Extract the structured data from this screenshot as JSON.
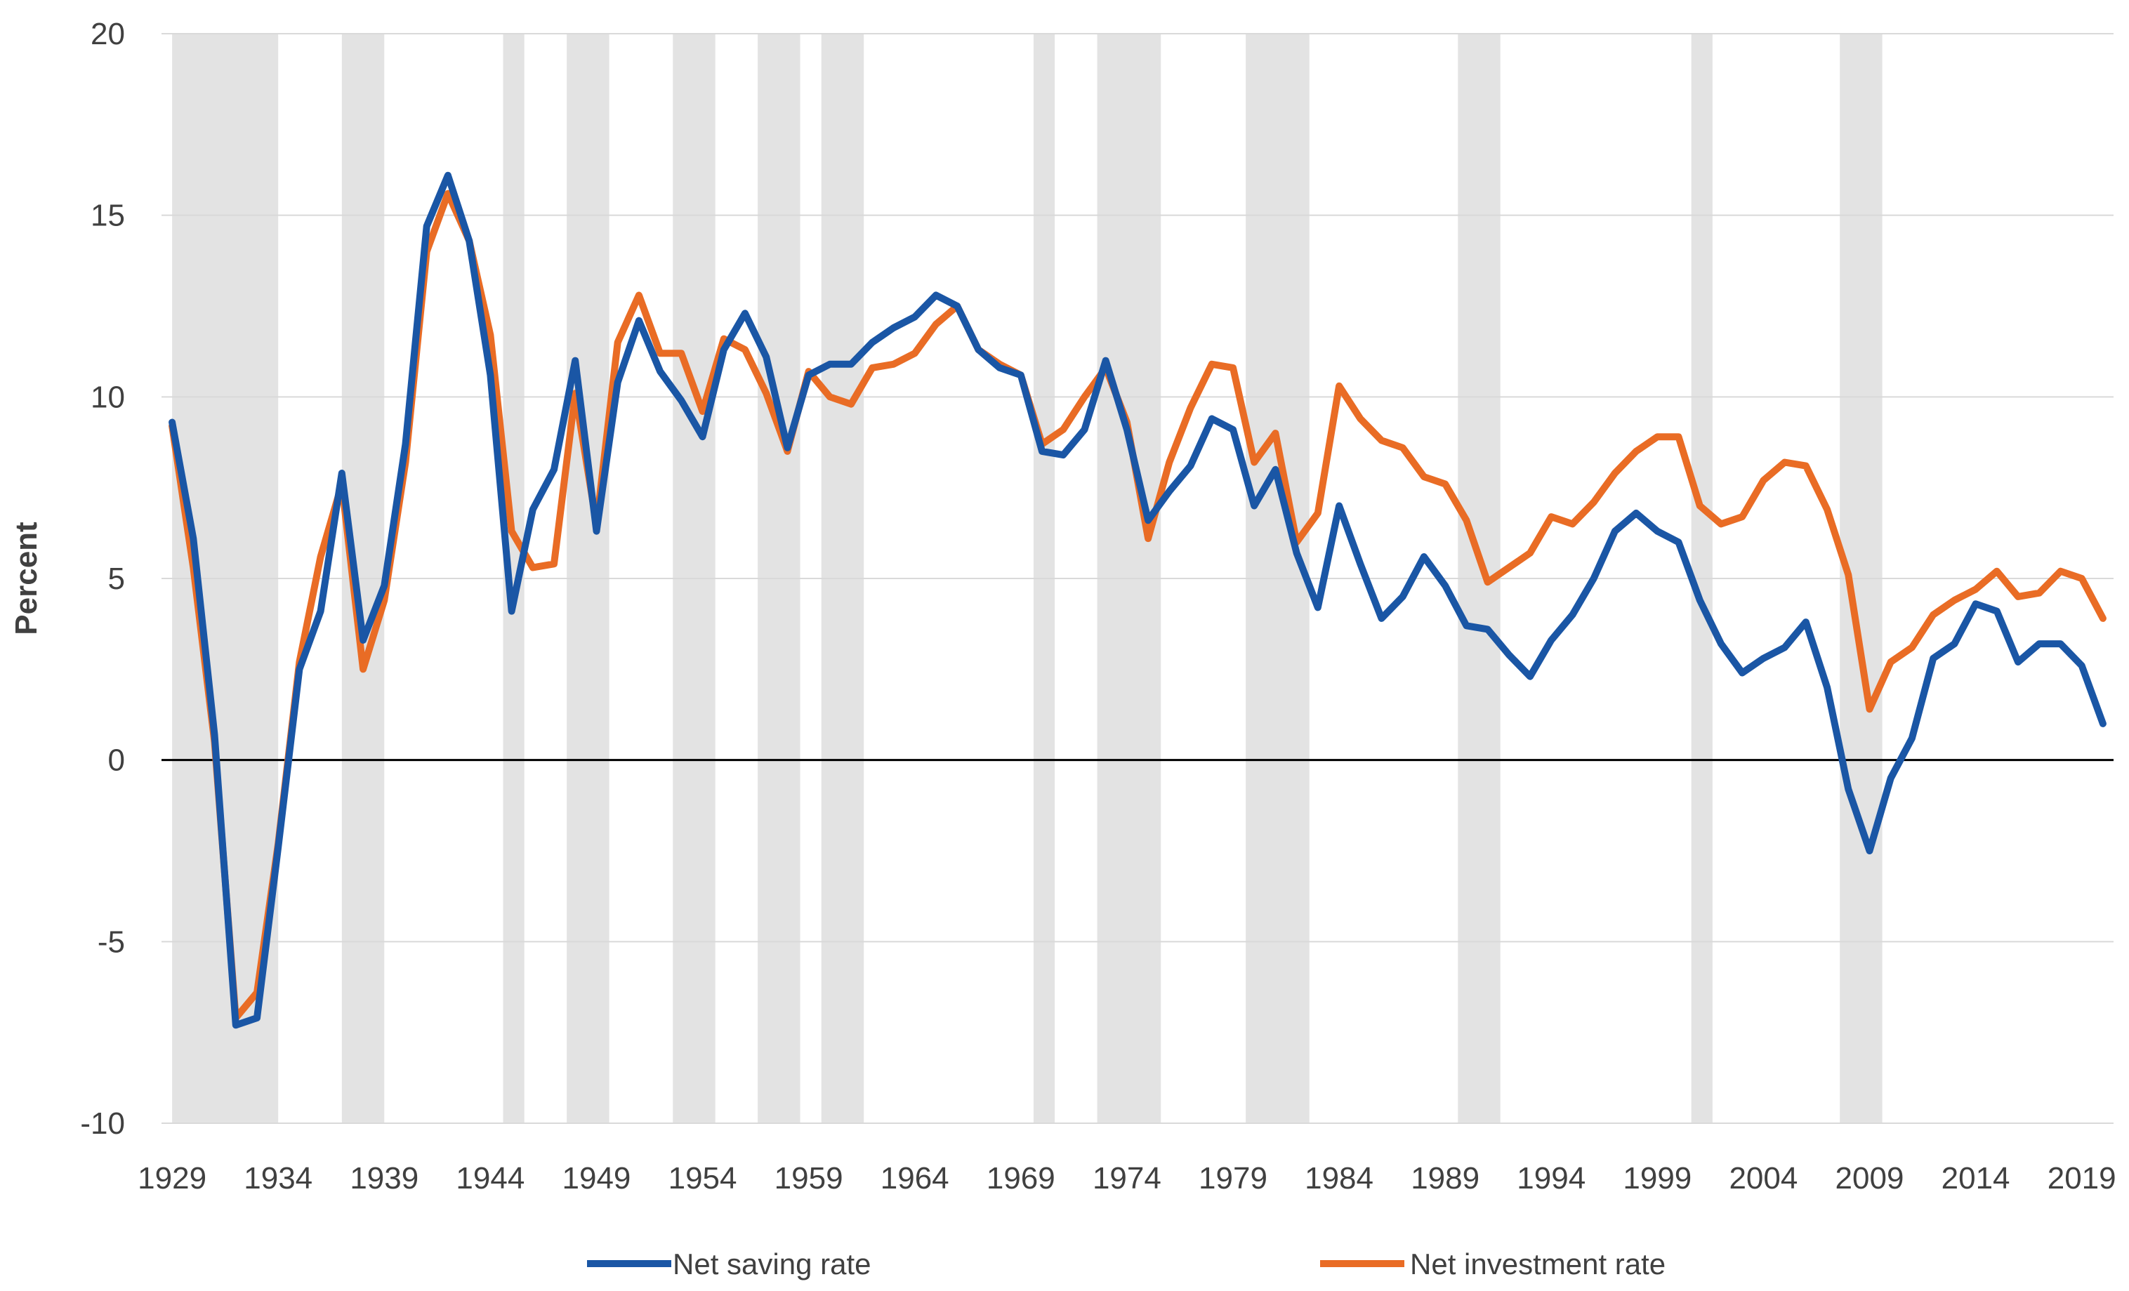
{
  "chart_data": {
    "type": "line",
    "title": "",
    "xlabel": "",
    "ylabel": "Percent",
    "ylim": [
      -10,
      20
    ],
    "y_ticks": [
      "20",
      "15",
      "10",
      "5",
      "0",
      "-5",
      "-10"
    ],
    "y_tick_values": [
      20,
      15,
      10,
      5,
      0,
      -5,
      -10
    ],
    "x_range": [
      1929,
      2020
    ],
    "x_ticks": [
      "1929",
      "1934",
      "1939",
      "1944",
      "1949",
      "1954",
      "1959",
      "1964",
      "1969",
      "1974",
      "1979",
      "1984",
      "1989",
      "1994",
      "1999",
      "2004",
      "2009",
      "2014",
      "2019"
    ],
    "x_tick_values": [
      1929,
      1934,
      1939,
      1944,
      1949,
      1954,
      1959,
      1964,
      1969,
      1974,
      1979,
      1984,
      1989,
      1994,
      1999,
      2004,
      2009,
      2014,
      2019
    ],
    "grid": true,
    "legend_position": "bottom",
    "shaded_periods": [
      [
        1929.0,
        1934.0
      ],
      [
        1937.0,
        1939.0
      ],
      [
        1944.6,
        1945.6
      ],
      [
        1947.6,
        1949.6
      ],
      [
        1952.6,
        1954.6
      ],
      [
        1956.6,
        1958.6
      ],
      [
        1959.6,
        1961.6
      ],
      [
        1969.6,
        1970.6
      ],
      [
        1972.6,
        1975.6
      ],
      [
        1979.6,
        1982.6
      ],
      [
        1989.6,
        1991.6
      ],
      [
        2000.6,
        2001.6
      ],
      [
        2007.6,
        2009.6
      ]
    ],
    "colors": {
      "net_saving": "#1a56a5",
      "net_investment": "#e96c25",
      "shading": "#e3e3e3",
      "zero_line": "#000000",
      "grid": "#d9d9d9"
    },
    "years": [
      1929,
      1930,
      1931,
      1932,
      1933,
      1934,
      1935,
      1936,
      1937,
      1938,
      1939,
      1940,
      1941,
      1942,
      1943,
      1944,
      1945,
      1946,
      1947,
      1948,
      1949,
      1950,
      1951,
      1952,
      1953,
      1954,
      1955,
      1956,
      1957,
      1958,
      1959,
      1960,
      1961,
      1962,
      1963,
      1964,
      1965,
      1966,
      1967,
      1968,
      1969,
      1970,
      1971,
      1972,
      1973,
      1974,
      1975,
      1976,
      1977,
      1978,
      1979,
      1980,
      1981,
      1982,
      1983,
      1984,
      1985,
      1986,
      1987,
      1988,
      1989,
      1990,
      1991,
      1992,
      1993,
      1994,
      1995,
      1996,
      1997,
      1998,
      1999,
      2000,
      2001,
      2002,
      2003,
      2004,
      2005,
      2006,
      2007,
      2008,
      2009,
      2010,
      2011,
      2012,
      2013,
      2014,
      2015,
      2016,
      2017,
      2018,
      2019,
      2020
    ],
    "series": [
      {
        "name": "Net saving rate",
        "color": "#1a56a5",
        "values": [
          9.3,
          6.1,
          0.7,
          -7.3,
          -7.1,
          -2.4,
          2.5,
          4.1,
          7.9,
          3.3,
          4.8,
          8.7,
          14.7,
          16.1,
          14.3,
          10.6,
          4.1,
          6.9,
          8.0,
          11.0,
          6.3,
          10.4,
          12.1,
          10.7,
          9.9,
          8.9,
          11.3,
          12.3,
          11.1,
          8.6,
          10.6,
          10.9,
          10.9,
          11.5,
          11.9,
          12.2,
          12.8,
          12.5,
          11.3,
          10.8,
          10.6,
          8.5,
          8.4,
          9.1,
          11.0,
          9.1,
          6.6,
          7.4,
          8.1,
          9.4,
          9.1,
          7.0,
          8.0,
          5.7,
          4.2,
          7.0,
          5.4,
          3.9,
          4.5,
          5.6,
          4.8,
          3.7,
          3.6,
          2.9,
          2.3,
          3.3,
          4.0,
          5.0,
          6.3,
          6.8,
          6.3,
          6.0,
          4.4,
          3.2,
          2.4,
          2.8,
          3.1,
          3.8,
          2.0,
          -0.8,
          -2.5,
          -0.5,
          0.6,
          2.8,
          3.2,
          4.3,
          4.1,
          2.7,
          3.2,
          3.2,
          2.6,
          1.0
        ]
      },
      {
        "name": "Net investment rate",
        "color": "#e96c25",
        "values": [
          9.2,
          5.3,
          0.5,
          -7.1,
          -6.4,
          -2.3,
          2.7,
          5.6,
          7.6,
          2.5,
          4.4,
          8.2,
          14.0,
          15.6,
          14.3,
          11.7,
          6.3,
          5.3,
          5.4,
          10.1,
          6.5,
          11.5,
          12.8,
          11.2,
          11.2,
          9.6,
          11.6,
          11.3,
          10.1,
          8.5,
          10.7,
          10.0,
          9.8,
          10.8,
          10.9,
          11.2,
          12.0,
          12.5,
          11.3,
          10.9,
          10.6,
          8.7,
          9.1,
          10.0,
          10.8,
          9.3,
          6.1,
          8.2,
          9.7,
          10.9,
          10.8,
          8.2,
          9.0,
          6.0,
          6.8,
          10.3,
          9.4,
          8.8,
          8.6,
          7.8,
          7.6,
          6.6,
          4.9,
          5.3,
          5.7,
          6.7,
          6.5,
          7.1,
          7.9,
          8.5,
          8.9,
          8.9,
          7.0,
          6.5,
          6.7,
          7.7,
          8.2,
          8.1,
          6.9,
          5.1,
          1.4,
          2.7,
          3.1,
          4.0,
          4.4,
          4.7,
          5.2,
          4.5,
          4.6,
          5.2,
          5.0,
          3.9
        ]
      }
    ]
  }
}
